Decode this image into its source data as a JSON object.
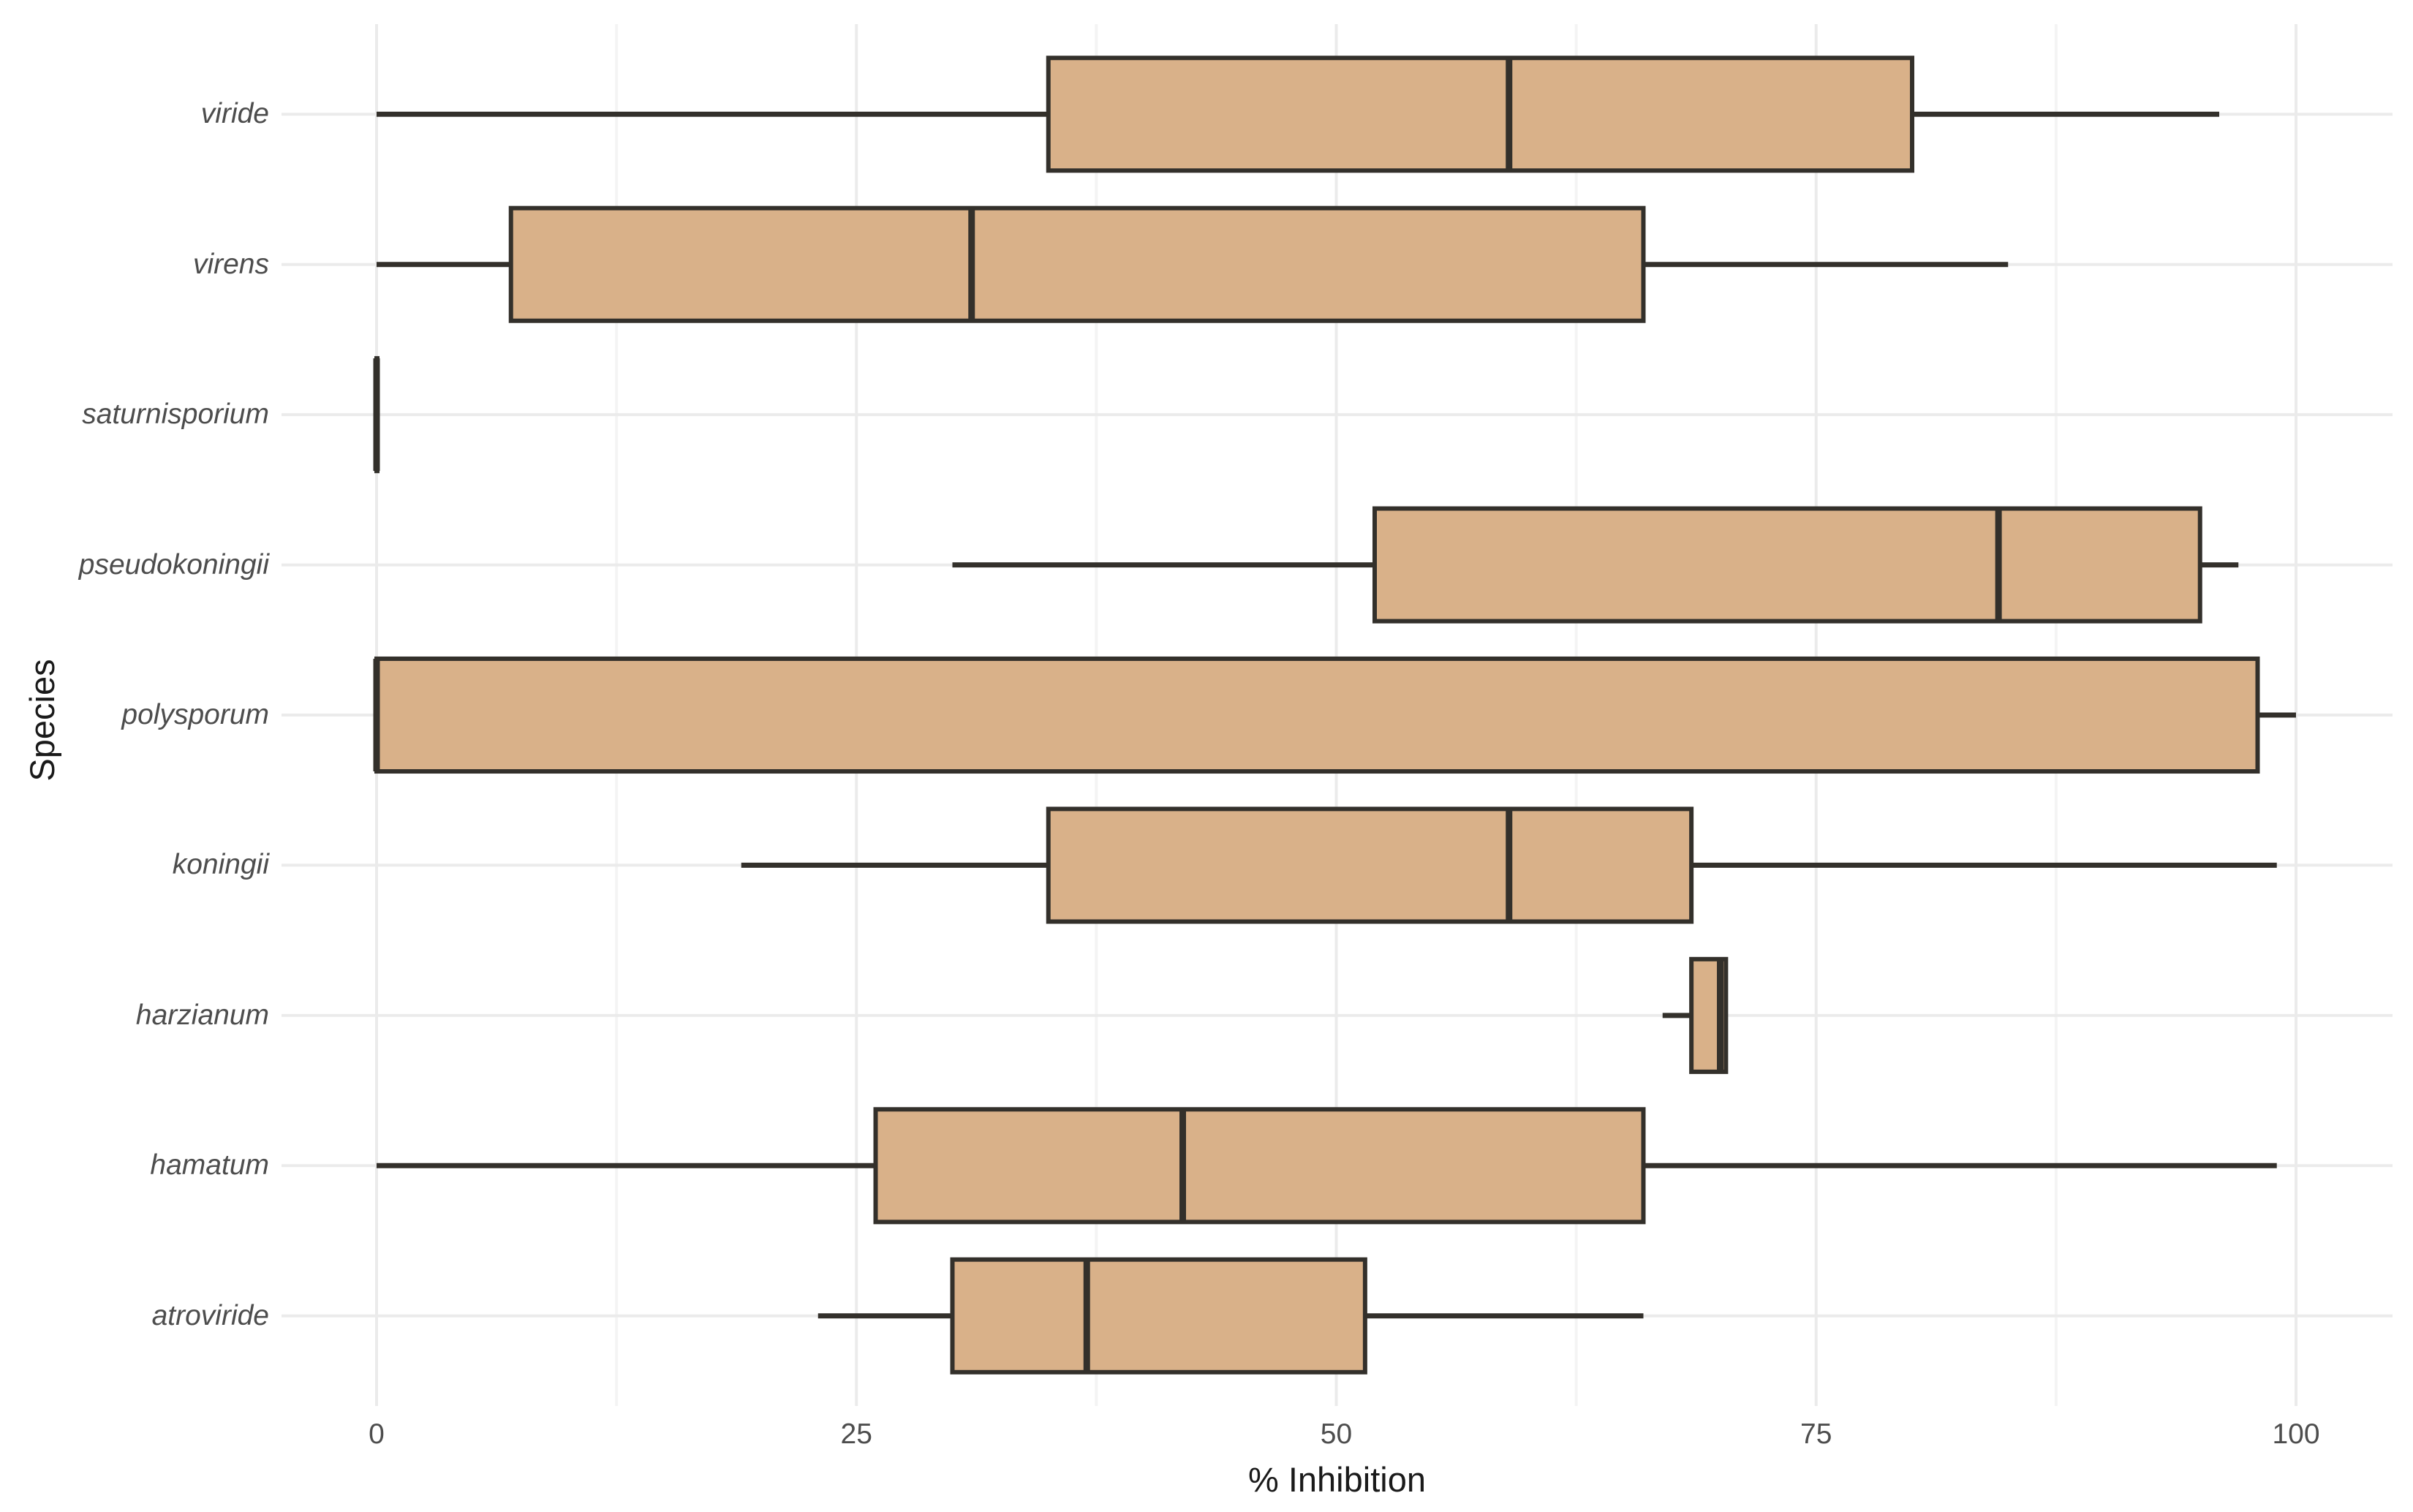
{
  "chart_data": {
    "type": "boxplot",
    "orientation": "horizontal",
    "title": "",
    "xlabel": "% Inhibition",
    "ylabel": "Species",
    "xlim": [
      0,
      100
    ],
    "x_ticks": [
      0,
      25,
      50,
      75,
      100
    ],
    "x_minor_ticks": [
      12.5,
      37.5,
      62.5,
      87.5
    ],
    "grid": "major and minor vertical gridlines, one horizontal gridline per category, no axis lines, no ticks",
    "legend": "none",
    "categories_top_to_bottom": [
      "viride",
      "virens",
      "saturnisporium",
      "pseudokoningii",
      "polysporum",
      "koningii",
      "harzianum",
      "hamatum",
      "atroviride"
    ],
    "series": [
      {
        "name": "viride",
        "min": 0,
        "q1": 35,
        "median": 59,
        "q3": 80,
        "max": 96
      },
      {
        "name": "virens",
        "min": 0,
        "q1": 7,
        "median": 31,
        "q3": 66,
        "max": 85
      },
      {
        "name": "saturnisporium",
        "min": 0,
        "q1": 0,
        "median": 0,
        "q3": 0,
        "max": 0
      },
      {
        "name": "pseudokoningii",
        "min": 30,
        "q1": 52,
        "median": 84.5,
        "q3": 95,
        "max": 97
      },
      {
        "name": "polysporum",
        "min": 0,
        "q1": 0,
        "median": 0,
        "q3": 98,
        "max": 100
      },
      {
        "name": "koningii",
        "min": 19,
        "q1": 35,
        "median": 59,
        "q3": 68.5,
        "max": 99
      },
      {
        "name": "harzianum",
        "min": 67,
        "q1": 68.5,
        "median": 70,
        "q3": 70.3,
        "max": 70.3
      },
      {
        "name": "hamatum",
        "min": 0,
        "q1": 26,
        "median": 42,
        "q3": 66,
        "max": 99
      },
      {
        "name": "atroviride",
        "min": 23,
        "q1": 30,
        "median": 37,
        "q3": 51.5,
        "max": 66
      }
    ],
    "colors": {
      "box_fill": "#D9B189",
      "box_stroke": "#33302B",
      "median_stroke": "#33302B",
      "grid_major": "#EBEBEB",
      "grid_minor": "#F4F4F4",
      "axis_tick_text": "#4D4D4D",
      "axis_title_text": "#1A1A1A",
      "background": "#FFFFFF"
    }
  }
}
